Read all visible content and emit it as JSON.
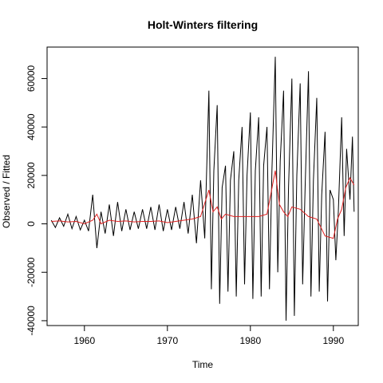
{
  "chart_data": {
    "type": "line",
    "title": "Holt-Winters filtering",
    "xlabel": "Time",
    "ylabel": "Observed / Fitted",
    "xlim": [
      1955.5,
      1993.0
    ],
    "ylim": [
      -42000,
      73000
    ],
    "grid": false,
    "x_ticks": [
      1960,
      1970,
      1980,
      1990
    ],
    "y_ticks": [
      -40000,
      -20000,
      0,
      20000,
      40000,
      60000
    ],
    "x_tick_labels": [
      "1960",
      "1970",
      "1980",
      "1990"
    ],
    "y_tick_labels": [
      "-40000",
      "-20000",
      "0",
      "20000",
      "40000",
      "60000"
    ],
    "series": [
      {
        "color": "#000000",
        "x": [
          1956.0,
          1956.5,
          1957.0,
          1957.5,
          1958.0,
          1958.5,
          1959.0,
          1959.5,
          1960.0,
          1960.5,
          1961.0,
          1961.5,
          1962.0,
          1962.5,
          1963.0,
          1963.5,
          1964.0,
          1964.5,
          1965.0,
          1965.5,
          1966.0,
          1966.5,
          1967.0,
          1967.5,
          1968.0,
          1968.5,
          1969.0,
          1969.5,
          1970.0,
          1970.5,
          1971.0,
          1971.5,
          1972.0,
          1972.5,
          1973.0,
          1973.5,
          1974.0,
          1974.5,
          1975.0,
          1975.3,
          1975.6,
          1976.0,
          1976.3,
          1976.6,
          1977.0,
          1977.3,
          1977.6,
          1978.0,
          1978.3,
          1978.6,
          1979.0,
          1979.3,
          1979.6,
          1980.0,
          1980.3,
          1980.6,
          1981.0,
          1981.3,
          1981.6,
          1982.0,
          1982.3,
          1982.6,
          1983.0,
          1983.3,
          1983.6,
          1984.0,
          1984.3,
          1984.6,
          1985.0,
          1985.3,
          1985.6,
          1986.0,
          1986.3,
          1986.6,
          1987.0,
          1987.3,
          1987.6,
          1988.0,
          1988.3,
          1988.6,
          1989.0,
          1989.3,
          1989.6,
          1990.0,
          1990.3,
          1990.6,
          1991.0,
          1991.3,
          1991.6,
          1992.0,
          1992.3,
          1992.5
        ],
        "y": [
          1500,
          -1500,
          2500,
          -1000,
          4000,
          -2000,
          3000,
          -2500,
          1500,
          -3000,
          12000,
          -10000,
          5000,
          -4000,
          8000,
          -5000,
          9000,
          -3000,
          6000,
          -2500,
          5000,
          -2000,
          6000,
          -2000,
          7000,
          -2500,
          8000,
          -3000,
          6000,
          -2500,
          7000,
          -2000,
          9000,
          -4000,
          12000,
          -8000,
          18000,
          -6000,
          55000,
          -27000,
          22000,
          49000,
          -33000,
          15000,
          24000,
          -28000,
          18000,
          30000,
          -30000,
          18000,
          40000,
          -25000,
          20000,
          46000,
          -31000,
          22000,
          44000,
          -30000,
          24000,
          40000,
          -27000,
          22000,
          69000,
          -20000,
          26000,
          55000,
          -40000,
          15000,
          60000,
          -38000,
          20000,
          58000,
          -25000,
          15000,
          63000,
          -30000,
          18000,
          52000,
          -28000,
          12000,
          38000,
          -32000,
          14000,
          10000,
          -15000,
          5000,
          44000,
          -5000,
          31000,
          10000,
          36000,
          5000
        ]
      },
      {
        "color": "#df2020",
        "x": [
          1956.0,
          1957.0,
          1958.0,
          1959.0,
          1960.0,
          1961.0,
          1961.5,
          1962.0,
          1963.0,
          1964.0,
          1965.0,
          1966.0,
          1967.0,
          1968.0,
          1969.0,
          1970.0,
          1971.0,
          1972.0,
          1973.0,
          1974.0,
          1975.0,
          1975.5,
          1976.0,
          1976.5,
          1977.0,
          1978.0,
          1979.0,
          1980.0,
          1981.0,
          1982.0,
          1983.0,
          1983.5,
          1984.0,
          1984.5,
          1985.0,
          1986.0,
          1987.0,
          1988.0,
          1989.0,
          1990.0,
          1990.5,
          1991.0,
          1991.5,
          1992.0,
          1992.5
        ],
        "y": [
          1000,
          1200,
          800,
          1000,
          0,
          1500,
          4000,
          0,
          1500,
          1000,
          1200,
          800,
          1000,
          1000,
          1200,
          500,
          1000,
          1500,
          2000,
          3000,
          14000,
          5000,
          7000,
          2000,
          4000,
          3000,
          3000,
          3000,
          3000,
          4000,
          22000,
          8000,
          5000,
          3000,
          7000,
          6000,
          3000,
          2000,
          -5000,
          -6000,
          2000,
          6000,
          15000,
          19000,
          16000
        ]
      }
    ]
  }
}
